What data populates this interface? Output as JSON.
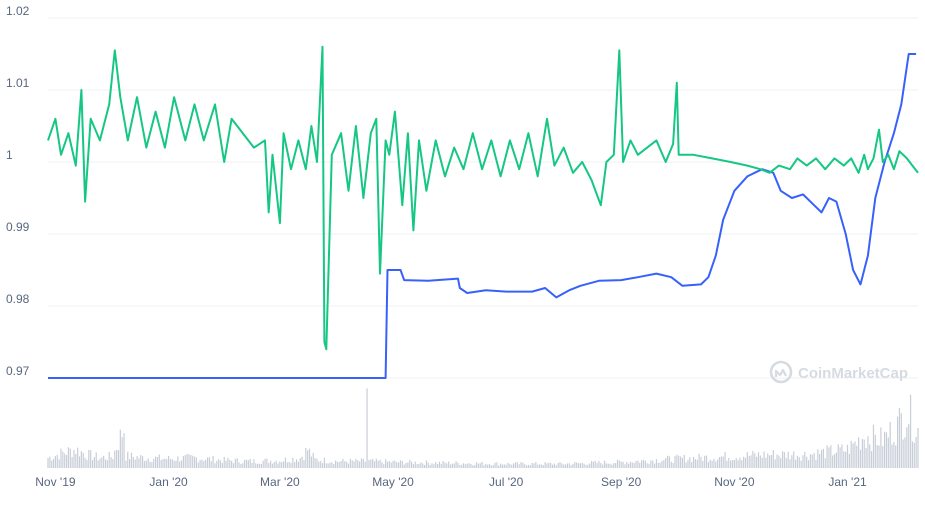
{
  "colors": {
    "price_line": "#3861fb",
    "peg_line": "#16c784",
    "grid": "#eff2f5",
    "volume_bar": "#c8ced8",
    "axis_text": "#58667e",
    "watermark": "#d6dbe2"
  },
  "watermark": {
    "text": "CoinMarketCap",
    "icon": "coinmarketcap-logo-icon"
  },
  "chart_data": {
    "type": "line",
    "title": "",
    "xlabel": "",
    "ylabel": "",
    "grid": true,
    "legend": "none",
    "x_range": [
      "2019-10-28",
      "2021-02-08"
    ],
    "ylim": [
      0.97,
      1.02
    ],
    "y_ticks": [
      0.97,
      0.98,
      0.99,
      1,
      1.01,
      1.02
    ],
    "y_tick_labels": [
      "0.97",
      "0.98",
      "0.99",
      "1",
      "1.01",
      "1.02"
    ],
    "x_ticks": [
      "2019-11-01",
      "2020-01-01",
      "2020-03-01",
      "2020-05-01",
      "2020-07-01",
      "2020-09-01",
      "2020-11-01",
      "2021-01-01"
    ],
    "x_tick_labels": [
      "Nov '19",
      "Jan '20",
      "Mar '20",
      "May '20",
      "Jul '20",
      "Sep '20",
      "Nov '20",
      "Jan '21"
    ],
    "series": [
      {
        "color": "#3861fb",
        "points": [
          [
            "2019-10-28",
            0.97
          ],
          [
            "2020-04-27",
            0.97
          ],
          [
            "2020-04-28",
            0.985
          ],
          [
            "2020-05-05",
            0.985
          ],
          [
            "2020-05-07",
            0.9836
          ],
          [
            "2020-05-20",
            0.9835
          ],
          [
            "2020-06-05",
            0.9838
          ],
          [
            "2020-06-06",
            0.9825
          ],
          [
            "2020-06-10",
            0.9818
          ],
          [
            "2020-06-20",
            0.9822
          ],
          [
            "2020-07-01",
            0.982
          ],
          [
            "2020-07-15",
            0.982
          ],
          [
            "2020-07-22",
            0.9825
          ],
          [
            "2020-07-28",
            0.9812
          ],
          [
            "2020-08-04",
            0.9822
          ],
          [
            "2020-08-10",
            0.9828
          ],
          [
            "2020-08-20",
            0.9835
          ],
          [
            "2020-09-01",
            0.9836
          ],
          [
            "2020-09-10",
            0.984
          ],
          [
            "2020-09-20",
            0.9845
          ],
          [
            "2020-09-28",
            0.984
          ],
          [
            "2020-10-04",
            0.9828
          ],
          [
            "2020-10-14",
            0.983
          ],
          [
            "2020-10-18",
            0.984
          ],
          [
            "2020-10-22",
            0.987
          ],
          [
            "2020-10-26",
            0.992
          ],
          [
            "2020-11-01",
            0.996
          ],
          [
            "2020-11-08",
            0.998
          ],
          [
            "2020-11-16",
            0.999
          ],
          [
            "2020-11-22",
            0.9985
          ],
          [
            "2020-11-26",
            0.996
          ],
          [
            "2020-12-02",
            0.995
          ],
          [
            "2020-12-08",
            0.9955
          ],
          [
            "2020-12-14",
            0.994
          ],
          [
            "2020-12-18",
            0.993
          ],
          [
            "2020-12-22",
            0.995
          ],
          [
            "2020-12-26",
            0.9945
          ],
          [
            "2020-12-31",
            0.99
          ],
          [
            "2021-01-04",
            0.985
          ],
          [
            "2021-01-08",
            0.983
          ],
          [
            "2021-01-12",
            0.987
          ],
          [
            "2021-01-16",
            0.995
          ],
          [
            "2021-01-21",
            1.0
          ],
          [
            "2021-01-26",
            1.004
          ],
          [
            "2021-01-30",
            1.008
          ],
          [
            "2021-02-03",
            1.015
          ],
          [
            "2021-02-07",
            1.015
          ]
        ]
      },
      {
        "color": "#16c784",
        "points": [
          [
            "2019-10-28",
            1.003
          ],
          [
            "2019-11-01",
            1.006
          ],
          [
            "2019-11-04",
            1.001
          ],
          [
            "2019-11-08",
            1.004
          ],
          [
            "2019-11-12",
            0.9995
          ],
          [
            "2019-11-15",
            1.01
          ],
          [
            "2019-11-17",
            0.9945
          ],
          [
            "2019-11-20",
            1.006
          ],
          [
            "2019-11-25",
            1.003
          ],
          [
            "2019-11-30",
            1.008
          ],
          [
            "2019-12-03",
            1.0155
          ],
          [
            "2019-12-06",
            1.009
          ],
          [
            "2019-12-10",
            1.003
          ],
          [
            "2019-12-15",
            1.009
          ],
          [
            "2019-12-20",
            1.002
          ],
          [
            "2019-12-25",
            1.007
          ],
          [
            "2019-12-30",
            1.002
          ],
          [
            "2020-01-04",
            1.009
          ],
          [
            "2020-01-10",
            1.003
          ],
          [
            "2020-01-15",
            1.008
          ],
          [
            "2020-01-20",
            1.003
          ],
          [
            "2020-01-26",
            1.008
          ],
          [
            "2020-01-31",
            1.0
          ],
          [
            "2020-02-04",
            1.006
          ],
          [
            "2020-02-10",
            1.004
          ],
          [
            "2020-02-16",
            1.002
          ],
          [
            "2020-02-22",
            1.003
          ],
          [
            "2020-02-24",
            0.993
          ],
          [
            "2020-02-26",
            1.001
          ],
          [
            "2020-03-01",
            0.9915
          ],
          [
            "2020-03-03",
            1.004
          ],
          [
            "2020-03-07",
            0.999
          ],
          [
            "2020-03-11",
            1.003
          ],
          [
            "2020-03-15",
            0.999
          ],
          [
            "2020-03-18",
            1.005
          ],
          [
            "2020-03-21",
            1.0
          ],
          [
            "2020-03-24",
            1.016
          ],
          [
            "2020-03-25",
            0.975
          ],
          [
            "2020-03-26",
            0.974
          ],
          [
            "2020-03-29",
            1.001
          ],
          [
            "2020-04-03",
            1.004
          ],
          [
            "2020-04-07",
            0.996
          ],
          [
            "2020-04-11",
            1.005
          ],
          [
            "2020-04-15",
            0.995
          ],
          [
            "2020-04-19",
            1.004
          ],
          [
            "2020-04-22",
            1.006
          ],
          [
            "2020-04-24",
            0.9845
          ],
          [
            "2020-04-27",
            1.003
          ],
          [
            "2020-04-29",
            1.001
          ],
          [
            "2020-05-02",
            1.007
          ],
          [
            "2020-05-06",
            0.994
          ],
          [
            "2020-05-09",
            1.004
          ],
          [
            "2020-05-12",
            0.9905
          ],
          [
            "2020-05-15",
            1.003
          ],
          [
            "2020-05-19",
            0.996
          ],
          [
            "2020-05-24",
            1.003
          ],
          [
            "2020-05-29",
            0.998
          ],
          [
            "2020-06-03",
            1.002
          ],
          [
            "2020-06-08",
            0.999
          ],
          [
            "2020-06-13",
            1.004
          ],
          [
            "2020-06-18",
            0.999
          ],
          [
            "2020-06-23",
            1.003
          ],
          [
            "2020-06-28",
            0.998
          ],
          [
            "2020-07-03",
            1.003
          ],
          [
            "2020-07-08",
            0.999
          ],
          [
            "2020-07-13",
            1.004
          ],
          [
            "2020-07-18",
            0.998
          ],
          [
            "2020-07-23",
            1.006
          ],
          [
            "2020-07-27",
            0.9995
          ],
          [
            "2020-08-01",
            1.002
          ],
          [
            "2020-08-06",
            0.9985
          ],
          [
            "2020-08-11",
            1.0
          ],
          [
            "2020-08-16",
            0.9975
          ],
          [
            "2020-08-21",
            0.994
          ],
          [
            "2020-08-24",
            1.0
          ],
          [
            "2020-08-28",
            1.001
          ],
          [
            "2020-08-31",
            1.0155
          ],
          [
            "2020-09-02",
            1.0
          ],
          [
            "2020-09-06",
            1.003
          ],
          [
            "2020-09-10",
            1.001
          ],
          [
            "2020-09-15",
            1.002
          ],
          [
            "2020-09-20",
            1.003
          ],
          [
            "2020-09-25",
            1.0
          ],
          [
            "2020-09-29",
            1.0025
          ],
          [
            "2020-10-01",
            1.011
          ],
          [
            "2020-10-02",
            1.001
          ],
          [
            "2020-10-10",
            1.001
          ],
          [
            "2020-10-20",
            1.0005
          ],
          [
            "2020-10-30",
            1.0
          ],
          [
            "2020-11-08",
            0.9995
          ],
          [
            "2020-11-15",
            0.999
          ],
          [
            "2020-11-20",
            0.9985
          ],
          [
            "2020-11-25",
            0.9995
          ],
          [
            "2020-12-01",
            0.999
          ],
          [
            "2020-12-05",
            1.0005
          ],
          [
            "2020-12-10",
            0.9995
          ],
          [
            "2020-12-15",
            1.0005
          ],
          [
            "2020-12-20",
            0.999
          ],
          [
            "2020-12-25",
            1.0005
          ],
          [
            "2020-12-30",
            0.9995
          ],
          [
            "2021-01-03",
            1.0005
          ],
          [
            "2021-01-07",
            0.9985
          ],
          [
            "2021-01-10",
            1.001
          ],
          [
            "2021-01-12",
            0.999
          ],
          [
            "2021-01-15",
            1.0005
          ],
          [
            "2021-01-18",
            1.0045
          ],
          [
            "2021-01-20",
            1.0
          ],
          [
            "2021-01-23",
            1.001
          ],
          [
            "2021-01-26",
            0.999
          ],
          [
            "2021-01-29",
            1.0015
          ],
          [
            "2021-02-02",
            1.0005
          ],
          [
            "2021-02-05",
            0.9995
          ],
          [
            "2021-02-08",
            0.9985
          ]
        ]
      }
    ],
    "volume_profile": [
      [
        "2019-10-28",
        0.12
      ],
      [
        "2019-11-05",
        0.18
      ],
      [
        "2019-11-12",
        0.22
      ],
      [
        "2019-11-18",
        0.16
      ],
      [
        "2019-11-25",
        0.12
      ],
      [
        "2019-12-02",
        0.14
      ],
      [
        "2019-12-08",
        0.48
      ],
      [
        "2019-12-10",
        0.14
      ],
      [
        "2019-12-20",
        0.12
      ],
      [
        "2020-01-01",
        0.11
      ],
      [
        "2020-01-15",
        0.12
      ],
      [
        "2020-02-01",
        0.09
      ],
      [
        "2020-02-15",
        0.08
      ],
      [
        "2020-03-01",
        0.09
      ],
      [
        "2020-03-12",
        0.12
      ],
      [
        "2020-03-16",
        0.22
      ],
      [
        "2020-03-20",
        0.1
      ],
      [
        "2020-04-01",
        0.08
      ],
      [
        "2020-04-16",
        0.08
      ],
      [
        "2020-04-17",
        0.95
      ],
      [
        "2020-04-18",
        0.08
      ],
      [
        "2020-05-01",
        0.07
      ],
      [
        "2020-06-01",
        0.06
      ],
      [
        "2020-07-01",
        0.05
      ],
      [
        "2020-08-01",
        0.05
      ],
      [
        "2020-09-01",
        0.07
      ],
      [
        "2020-10-01",
        0.11
      ],
      [
        "2020-11-01",
        0.14
      ],
      [
        "2020-11-20",
        0.16
      ],
      [
        "2020-12-10",
        0.16
      ],
      [
        "2021-01-01",
        0.22
      ],
      [
        "2021-01-10",
        0.38
      ],
      [
        "2021-01-20",
        0.34
      ],
      [
        "2021-01-28",
        0.5
      ],
      [
        "2021-02-02",
        0.68
      ],
      [
        "2021-02-08",
        0.45
      ]
    ]
  }
}
